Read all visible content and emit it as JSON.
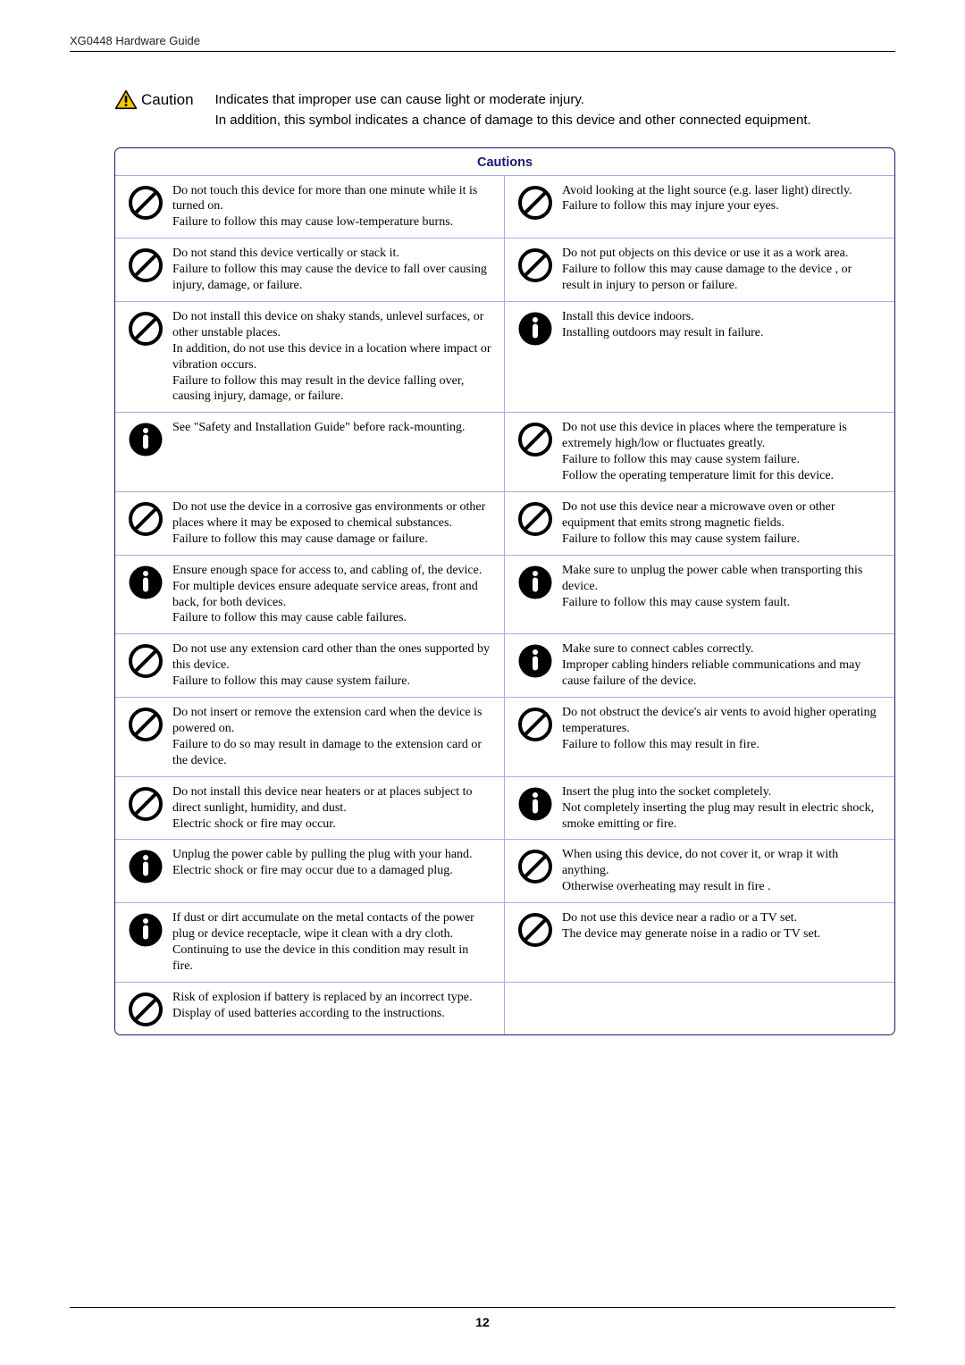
{
  "header": {
    "doc_title": "XG0448 Hardware Guide"
  },
  "caution_head": {
    "label": "Caution",
    "line1": "Indicates that improper use can cause light or moderate injury.",
    "line2": "In addition, this symbol indicates a chance of damage to this device and other connected equipment."
  },
  "table": {
    "title": "Cautions",
    "rows": [
      {
        "left": {
          "icon": "prohibit",
          "text": "Do not touch this device for more than one minute while it is turned on.\nFailure to follow this may cause low-temperature burns."
        },
        "right": {
          "icon": "prohibit",
          "text": "Avoid looking at the light source (e.g. laser light) directly.\nFailure to follow this may injure your eyes."
        }
      },
      {
        "left": {
          "icon": "prohibit",
          "text": "Do not stand this device vertically or stack it.\nFailure to follow this may cause the device to fall over causing injury, damage, or failure."
        },
        "right": {
          "icon": "prohibit",
          "text": "Do not put objects on this device or use it as a work area.\nFailure to follow this may cause damage to the device , or result in injury to person or failure."
        }
      },
      {
        "left": {
          "icon": "prohibit",
          "text": "Do not install this device on shaky stands, unlevel surfaces, or other unstable places.\nIn addition, do not use this device in a location where impact or vibration occurs.\nFailure to follow this may result in the device falling over, causing injury, damage, or failure."
        },
        "right": {
          "icon": "mandatory",
          "text": "Install this device indoors.\nInstalling outdoors may result in failure."
        }
      },
      {
        "left": {
          "icon": "mandatory",
          "text": "See \"Safety and Installation Guide\" before rack-mounting."
        },
        "right": {
          "icon": "prohibit",
          "text": "Do not use this device in places where the temperature is extremely high/low or fluctuates greatly.\nFailure to follow this may cause system failure.\nFollow the operating temperature limit for this device."
        }
      },
      {
        "left": {
          "icon": "prohibit",
          "text": "Do not use the device in a corrosive gas environments or other places where it may be exposed to chemical substances.\nFailure to follow this may cause damage or failure."
        },
        "right": {
          "icon": "prohibit",
          "text": "Do not use this device near a microwave oven or other equipment that emits strong magnetic fields.\nFailure to follow this may cause system failure."
        }
      },
      {
        "left": {
          "icon": "mandatory",
          "text": "Ensure enough space for access to, and cabling of, the device.\nFor multiple devices ensure adequate service areas, front and back, for both devices.\nFailure to follow this may cause cable failures."
        },
        "right": {
          "icon": "mandatory",
          "text": "Make sure to unplug the power cable when transporting this device.\nFailure to follow this may cause system fault."
        }
      },
      {
        "left": {
          "icon": "prohibit",
          "text": "Do not use any extension card other than the ones supported by this device.\nFailure to follow this may cause system failure."
        },
        "right": {
          "icon": "mandatory",
          "text": "Make sure to connect cables correctly.\nImproper cabling hinders reliable communications and may cause failure of the device."
        }
      },
      {
        "left": {
          "icon": "prohibit",
          "text": "Do not insert or remove the extension card when the device is powered on.\nFailure to do so may result in damage to the extension card or the device."
        },
        "right": {
          "icon": "prohibit",
          "text": "Do not obstruct the device's air vents to avoid higher operating temperatures.\nFailure to follow this may result in fire."
        }
      },
      {
        "left": {
          "icon": "prohibit",
          "text": "Do not install this device near heaters or at places subject to direct sunlight, humidity, and dust.\nElectric shock or fire may occur."
        },
        "right": {
          "icon": "mandatory",
          "text": "Insert the plug into the socket completely.\nNot completely inserting the plug may result in electric shock, smoke emitting or fire."
        }
      },
      {
        "left": {
          "icon": "mandatory",
          "text": "Unplug the power cable by pulling the plug with your hand.\nElectric shock or fire may occur due to a damaged plug."
        },
        "right": {
          "icon": "prohibit",
          "text": "When using this device, do not cover it, or wrap it with anything.\nOtherwise overheating may result in fire ."
        }
      },
      {
        "left": {
          "icon": "mandatory",
          "text": "If dust or dirt accumulate on the metal contacts of the power plug or device receptacle, wipe it clean with a dry cloth.\nContinuing to use the device in this condition may result in fire."
        },
        "right": {
          "icon": "prohibit",
          "text": "Do not use this device near a radio or a TV set.\nThe device may generate noise in a radio or TV set."
        }
      },
      {
        "left": {
          "icon": "prohibit",
          "text": "Risk of explosion if battery is replaced by an incorrect type. Display of used batteries according to the instructions."
        },
        "right": null
      }
    ]
  },
  "footer": {
    "page": "12"
  },
  "colors": {
    "border": "#161a6e",
    "row_border": "#a8aee0",
    "prohibit": "#000000",
    "mandatory": "#000000",
    "triangle_fill": "#f5c500",
    "triangle_stroke": "#000000"
  }
}
